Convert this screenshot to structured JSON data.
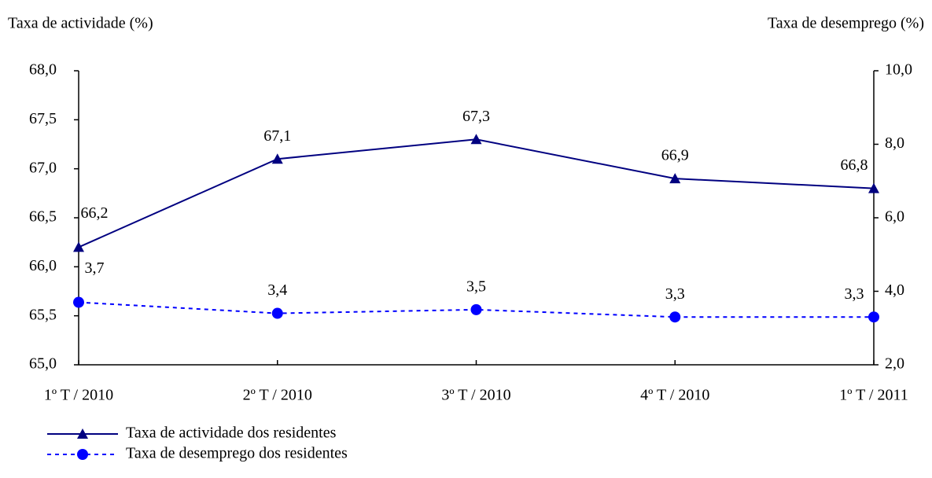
{
  "chart_data": {
    "type": "line",
    "y_axis_title": "Taxa de actividade (%)",
    "y2_axis_title": "Taxa de desemprego (%)",
    "categories": [
      "1º T / 2010",
      "2º T / 2010",
      "3º T / 2010",
      "4º T / 2010",
      "1º T / 2011"
    ],
    "series": [
      {
        "name": "Taxa de actividade dos residentes",
        "color": "#000080",
        "marker": "triangle",
        "dash": "solid",
        "values": [
          66.2,
          67.1,
          67.3,
          66.9,
          66.8
        ],
        "value_labels": [
          "66,2",
          "67,1",
          "67,3",
          "66,9",
          "66,8"
        ]
      },
      {
        "name": "Taxa de desemprego dos residentes",
        "color": "#0000ff",
        "marker": "circle",
        "dash": "dotted",
        "axis": "y2",
        "values": [
          3.7,
          3.4,
          3.5,
          3.3,
          3.3
        ],
        "value_labels": [
          "3,7",
          "3,4",
          "3,5",
          "3,3",
          "3,3"
        ]
      }
    ],
    "ylim": [
      65,
      68
    ],
    "yticks": [
      {
        "value": 65,
        "label": "65,0"
      },
      {
        "value": 65.5,
        "label": "65,5"
      },
      {
        "value": 66,
        "label": "66,0"
      },
      {
        "value": 66.5,
        "label": "66,5"
      },
      {
        "value": 67,
        "label": "67,0"
      },
      {
        "value": 67.5,
        "label": "67,5"
      },
      {
        "value": 68,
        "label": "68,0"
      }
    ],
    "y2lim": [
      2,
      10
    ],
    "y2ticks": [
      {
        "value": 2,
        "label": "2,0"
      },
      {
        "value": 4,
        "label": "4,0"
      },
      {
        "value": 6,
        "label": "6,0"
      },
      {
        "value": 8,
        "label": "8,0"
      },
      {
        "value": 10,
        "label": "10,0"
      }
    ],
    "grid": false,
    "legend": "bottom-left"
  }
}
